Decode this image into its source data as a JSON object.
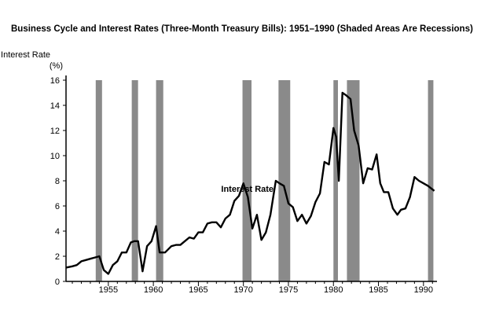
{
  "chart_data": {
    "type": "line",
    "title": "Business Cycle and Interest Rates (Three-Month Treasury Bills): 1951–1990 (Shaded Areas Are Recessions)",
    "ylabel": "Interest Rate",
    "yunit": "(%)",
    "xlim": [
      1950.3,
      1991.5
    ],
    "ylim": [
      0,
      16
    ],
    "xticks": [
      1955,
      1960,
      1965,
      1970,
      1975,
      1980,
      1985,
      1990
    ],
    "yticks": [
      0,
      2,
      4,
      6,
      8,
      10,
      12,
      14,
      16
    ],
    "grid": false,
    "legend": "none",
    "annotations": [
      {
        "text": "Interest Rate",
        "x": 1973,
        "y": 6.8
      }
    ],
    "recessions": [
      [
        1953.6,
        1954.3
      ],
      [
        1957.6,
        1958.3
      ],
      [
        1960.3,
        1961.1
      ],
      [
        1969.9,
        1970.9
      ],
      [
        1973.9,
        1975.2
      ],
      [
        1980.0,
        1980.5
      ],
      [
        1981.5,
        1982.9
      ],
      [
        1990.5,
        1991.1
      ]
    ],
    "series": [
      {
        "x": [
          1950.3,
          1951,
          1951.5,
          1952,
          1952.5,
          1953,
          1953.5,
          1954,
          1954.5,
          1955,
          1955.5,
          1956,
          1956.5,
          1957,
          1957.5,
          1957.9,
          1958.3,
          1958.8,
          1959.3,
          1959.8,
          1960.3,
          1960.7,
          1961.3,
          1962,
          1962.5,
          1963,
          1963.5,
          1964,
          1964.5,
          1965,
          1965.5,
          1966,
          1966.5,
          1967,
          1967.5,
          1968,
          1968.5,
          1969,
          1969.5,
          1970,
          1970.5,
          1971,
          1971.5,
          1972,
          1972.5,
          1973,
          1973.6,
          1974,
          1974.5,
          1975,
          1975.5,
          1976,
          1976.5,
          1977,
          1977.5,
          1978,
          1978.5,
          1979,
          1979.5,
          1980,
          1980.3,
          1980.6,
          1981,
          1981.4,
          1981.9,
          1982.3,
          1982.8,
          1983.3,
          1983.8,
          1984.3,
          1984.8,
          1985.2,
          1985.6,
          1986.1,
          1986.6,
          1987.1,
          1987.5,
          1988,
          1988.5,
          1989,
          1989.5,
          1990,
          1990.5,
          1991.2
        ],
        "values": [
          1.1,
          1.2,
          1.3,
          1.6,
          1.7,
          1.8,
          1.9,
          2.0,
          0.9,
          0.6,
          1.3,
          1.6,
          2.3,
          2.3,
          3.1,
          3.2,
          3.2,
          0.8,
          2.8,
          3.2,
          4.4,
          2.3,
          2.3,
          2.8,
          2.9,
          2.9,
          3.2,
          3.5,
          3.4,
          3.9,
          3.9,
          4.6,
          4.7,
          4.7,
          4.3,
          5.0,
          5.3,
          6.4,
          6.8,
          7.8,
          6.7,
          4.2,
          5.3,
          3.3,
          3.9,
          5.3,
          8.0,
          7.8,
          7.6,
          6.2,
          5.9,
          4.8,
          5.3,
          4.6,
          5.2,
          6.3,
          7.0,
          9.5,
          9.3,
          12.2,
          11.5,
          8.0,
          15.0,
          14.8,
          14.5,
          12.0,
          10.8,
          7.8,
          9.0,
          8.9,
          10.1,
          7.8,
          7.1,
          7.1,
          5.8,
          5.3,
          5.7,
          5.8,
          6.7,
          8.3,
          8.0,
          7.8,
          7.6,
          7.2
        ]
      }
    ]
  }
}
